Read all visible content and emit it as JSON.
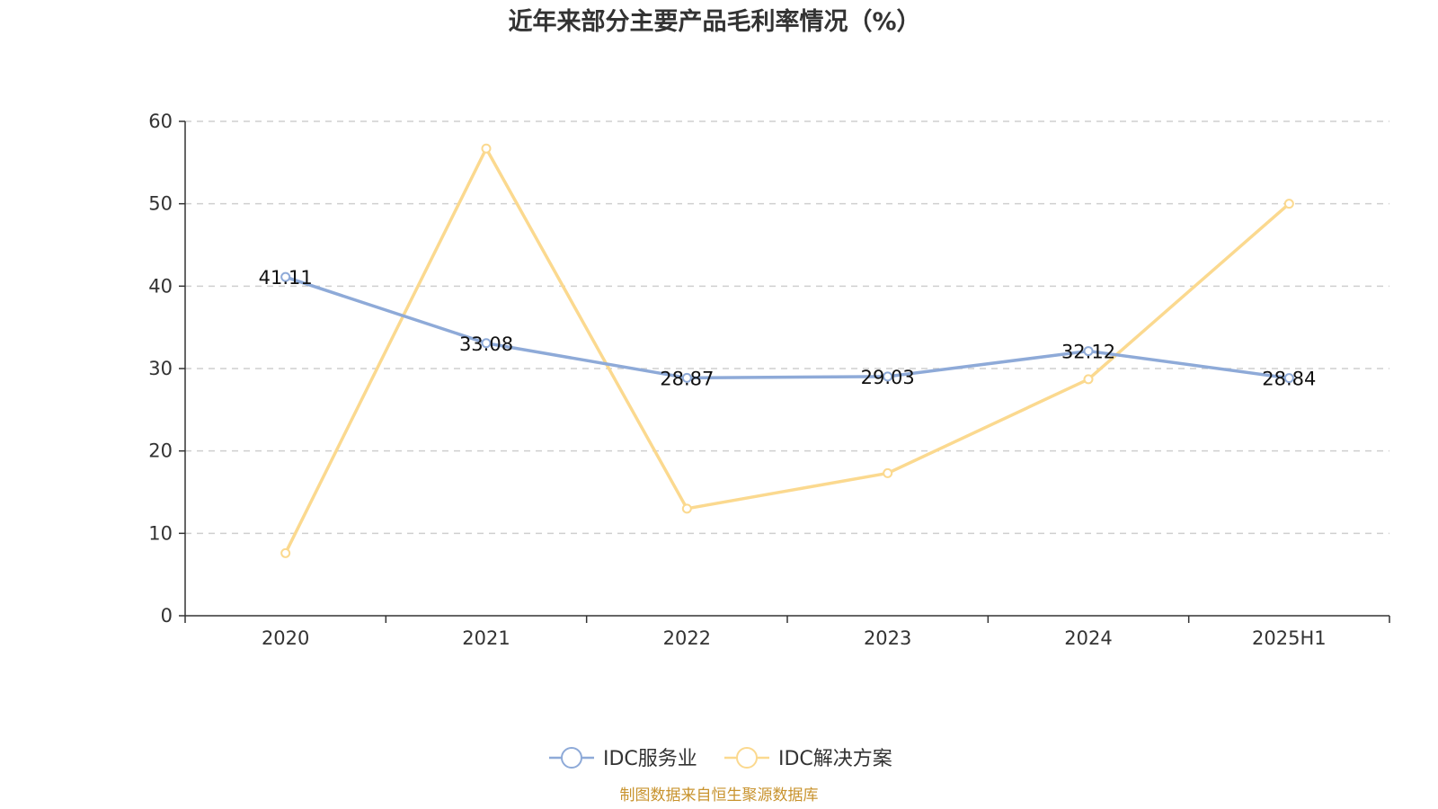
{
  "chart_data": {
    "type": "line",
    "title": "近年来部分主要产品毛利率情况（%）",
    "categories": [
      "2020",
      "2021",
      "2022",
      "2023",
      "2024",
      "2025H1"
    ],
    "ylim": [
      0,
      60
    ],
    "yticks": [
      0,
      10,
      20,
      30,
      40,
      50,
      60
    ],
    "grid": true,
    "legend_position": "bottom",
    "series": [
      {
        "name": "IDC服务业",
        "color": "#8eaad8",
        "show_labels": true,
        "values": [
          41.11,
          33.08,
          28.87,
          29.03,
          32.12,
          28.84
        ],
        "labels": [
          "41.11",
          "33.08",
          "28.87",
          "29.03",
          "32.12",
          "28.84"
        ]
      },
      {
        "name": "IDC解决方案",
        "color": "#fbd98f",
        "show_labels": false,
        "values": [
          7.6,
          56.7,
          13.0,
          17.3,
          28.7,
          50.0
        ]
      }
    ]
  },
  "source_note": "制图数据来自恒生聚源数据库"
}
